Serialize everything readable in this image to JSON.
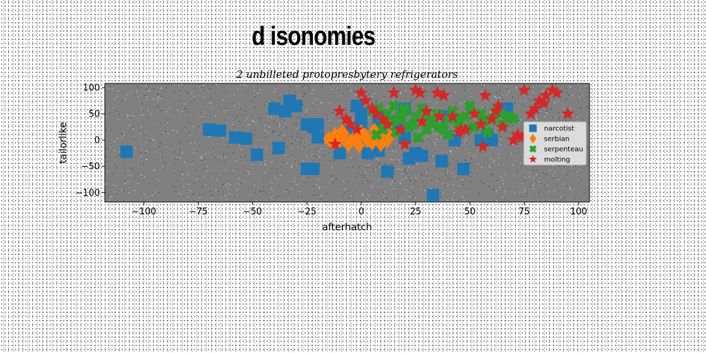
{
  "page": {
    "title": "d isonomies"
  },
  "chart_data": {
    "type": "scatter",
    "title": "2 unbilleted protopresbytery refrigerators",
    "xlabel": "afterhatch",
    "ylabel": "tailorlike",
    "xlim": [
      -118,
      105
    ],
    "ylim": [
      -118,
      108
    ],
    "xticks": [
      -100,
      -75,
      -50,
      -25,
      0,
      25,
      50,
      75,
      100
    ],
    "yticks": [
      -100,
      -50,
      0,
      50,
      100
    ],
    "grid": false,
    "legend_position": "right",
    "plot_background": "#808080",
    "series": [
      {
        "name": "narcotist",
        "color": "#1f77b4",
        "marker": "square",
        "x": [
          -108,
          -70,
          -65,
          -58,
          -53,
          -48,
          -40,
          -38,
          -35,
          -33,
          -25,
          -22,
          -20,
          -22,
          -25,
          -20,
          -10,
          -5,
          0,
          3,
          8,
          10,
          12,
          15,
          17,
          20,
          22,
          25,
          28,
          37,
          43,
          47,
          55,
          58,
          60,
          67,
          -2,
          33,
          40,
          20,
          0,
          -30,
          8
        ],
        "y": [
          -22,
          20,
          18,
          5,
          3,
          -28,
          60,
          -15,
          55,
          75,
          30,
          25,
          5,
          -55,
          -55,
          30,
          -25,
          15,
          50,
          -25,
          40,
          35,
          -60,
          35,
          20,
          5,
          -35,
          -25,
          -30,
          -40,
          0,
          -55,
          0,
          10,
          0,
          60,
          65,
          -105,
          45,
          60,
          30,
          65,
          -20
        ]
      },
      {
        "name": "serbian",
        "color": "#ff7f0e",
        "marker": "diamond",
        "x": [
          -15,
          -12,
          -10,
          -8,
          -5,
          -3,
          0,
          3,
          5,
          8,
          10,
          12,
          -13,
          -6,
          2,
          9,
          14,
          -9,
          -1,
          6
        ],
        "y": [
          2,
          10,
          0,
          12,
          -2,
          5,
          15,
          0,
          -5,
          10,
          5,
          0,
          -5,
          -8,
          8,
          -8,
          12,
          15,
          -10,
          18
        ]
      },
      {
        "name": "serpenteau",
        "color": "#2ca02c",
        "marker": "cross",
        "x": [
          5,
          8,
          10,
          12,
          15,
          18,
          20,
          22,
          25,
          28,
          30,
          32,
          35,
          38,
          40,
          42,
          45,
          48,
          50,
          52,
          55,
          58,
          60,
          62,
          65,
          68,
          70,
          10,
          14,
          18,
          24,
          30,
          36,
          44,
          50,
          56,
          64,
          7,
          16,
          26,
          40,
          48,
          20,
          33
        ],
        "y": [
          55,
          60,
          30,
          50,
          65,
          40,
          55,
          25,
          45,
          60,
          20,
          35,
          50,
          20,
          40,
          55,
          30,
          45,
          65,
          25,
          50,
          15,
          40,
          55,
          30,
          45,
          40,
          20,
          35,
          45,
          30,
          50,
          25,
          40,
          55,
          35,
          50,
          10,
          15,
          5,
          10,
          20,
          60,
          30
        ]
      },
      {
        "name": "molting",
        "color": "#d62728",
        "marker": "star",
        "x": [
          -12,
          -10,
          -7,
          -5,
          -2,
          0,
          2,
          5,
          7,
          10,
          12,
          15,
          18,
          20,
          25,
          28,
          30,
          35,
          38,
          42,
          45,
          48,
          52,
          55,
          57,
          60,
          63,
          65,
          70,
          72,
          75,
          78,
          80,
          82,
          85,
          88,
          90,
          95,
          27,
          36,
          46,
          62,
          74,
          84,
          56
        ],
        "y": [
          -8,
          55,
          40,
          30,
          20,
          90,
          75,
          60,
          50,
          40,
          30,
          90,
          20,
          -8,
          95,
          35,
          55,
          90,
          85,
          45,
          15,
          20,
          50,
          30,
          85,
          40,
          65,
          25,
          0,
          10,
          95,
          50,
          60,
          75,
          85,
          95,
          90,
          50,
          90,
          45,
          20,
          55,
          5,
          70,
          -12
        ]
      }
    ]
  }
}
